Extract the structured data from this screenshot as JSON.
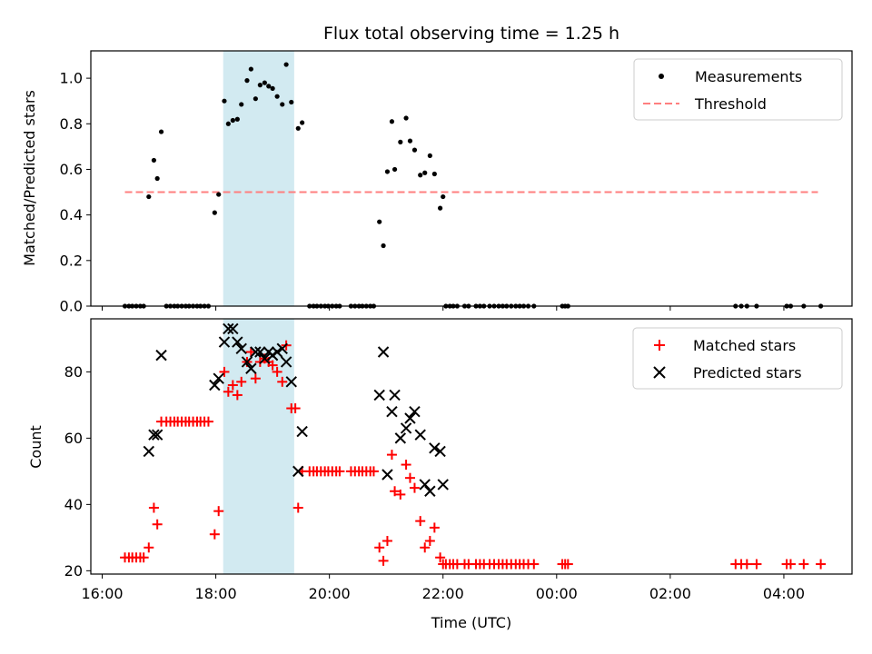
{
  "chart_data": [
    {
      "type": "scatter",
      "title": "Flux total observing time = 1.25 h",
      "xlabel": "",
      "ylabel": "Matched/Predicted stars",
      "xlim_hours": [
        15.8,
        29.2
      ],
      "ylim": [
        0,
        1.12
      ],
      "yticks": [
        0.0,
        0.2,
        0.4,
        0.6,
        0.8,
        1.0
      ],
      "ytick_labels": [
        "0.0",
        "0.2",
        "0.4",
        "0.6",
        "0.8",
        "1.0"
      ],
      "legend": {
        "placement": "top-right",
        "entries": [
          "Measurements",
          "Threshold"
        ]
      },
      "highlight_span_hours": [
        18.13,
        19.38
      ],
      "highlight_color": "#add8e6",
      "threshold": {
        "name": "Threshold",
        "y": 0.5,
        "x_range_hours": [
          16.4,
          28.6
        ],
        "color": "#ff7f7f"
      },
      "series": [
        {
          "name": "Measurements",
          "color": "#000000",
          "points": [
            [
              16.4,
              0
            ],
            [
              16.47,
              0
            ],
            [
              16.53,
              0
            ],
            [
              16.6,
              0
            ],
            [
              16.67,
              0
            ],
            [
              16.73,
              0
            ],
            [
              16.82,
              0.48
            ],
            [
              16.91,
              0.64
            ],
            [
              16.97,
              0.56
            ],
            [
              17.04,
              0.765
            ],
            [
              17.13,
              0
            ],
            [
              17.2,
              0
            ],
            [
              17.27,
              0
            ],
            [
              17.33,
              0
            ],
            [
              17.4,
              0
            ],
            [
              17.47,
              0
            ],
            [
              17.53,
              0
            ],
            [
              17.6,
              0
            ],
            [
              17.67,
              0
            ],
            [
              17.73,
              0
            ],
            [
              17.8,
              0
            ],
            [
              17.87,
              0
            ],
            [
              17.98,
              0.41
            ],
            [
              18.05,
              0.49
            ],
            [
              18.15,
              0.9
            ],
            [
              18.22,
              0.8
            ],
            [
              18.3,
              0.815
            ],
            [
              18.38,
              0.82
            ],
            [
              18.45,
              0.885
            ],
            [
              18.55,
              0.99
            ],
            [
              18.62,
              1.04
            ],
            [
              18.7,
              0.91
            ],
            [
              18.78,
              0.97
            ],
            [
              18.86,
              0.98
            ],
            [
              18.93,
              0.965
            ],
            [
              19.0,
              0.955
            ],
            [
              19.08,
              0.92
            ],
            [
              19.17,
              0.885
            ],
            [
              19.24,
              1.06
            ],
            [
              19.33,
              0.895
            ],
            [
              19.45,
              0.78
            ],
            [
              19.52,
              0.805
            ],
            [
              19.65,
              0
            ],
            [
              19.72,
              0
            ],
            [
              19.78,
              0
            ],
            [
              19.85,
              0
            ],
            [
              19.92,
              0
            ],
            [
              19.98,
              0
            ],
            [
              20.05,
              0
            ],
            [
              20.12,
              0
            ],
            [
              20.18,
              0
            ],
            [
              20.38,
              0
            ],
            [
              20.45,
              0
            ],
            [
              20.52,
              0
            ],
            [
              20.58,
              0
            ],
            [
              20.65,
              0
            ],
            [
              20.72,
              0
            ],
            [
              20.78,
              0
            ],
            [
              20.88,
              0.37
            ],
            [
              20.95,
              0.265
            ],
            [
              21.02,
              0.59
            ],
            [
              21.1,
              0.81
            ],
            [
              21.15,
              0.6
            ],
            [
              21.25,
              0.72
            ],
            [
              21.35,
              0.825
            ],
            [
              21.42,
              0.725
            ],
            [
              21.5,
              0.685
            ],
            [
              21.6,
              0.575
            ],
            [
              21.68,
              0.585
            ],
            [
              21.77,
              0.66
            ],
            [
              21.85,
              0.58
            ],
            [
              21.95,
              0.43
            ],
            [
              22.0,
              0.48
            ],
            [
              22.05,
              0
            ],
            [
              22.12,
              0
            ],
            [
              22.18,
              0
            ],
            [
              22.25,
              0
            ],
            [
              22.38,
              0
            ],
            [
              22.45,
              0
            ],
            [
              22.58,
              0
            ],
            [
              22.65,
              0
            ],
            [
              22.72,
              0
            ],
            [
              22.82,
              0
            ],
            [
              22.9,
              0
            ],
            [
              22.98,
              0
            ],
            [
              23.05,
              0
            ],
            [
              23.12,
              0
            ],
            [
              23.2,
              0
            ],
            [
              23.28,
              0
            ],
            [
              23.35,
              0
            ],
            [
              23.42,
              0
            ],
            [
              23.5,
              0
            ],
            [
              23.6,
              0
            ],
            [
              24.1,
              0
            ],
            [
              24.15,
              0
            ],
            [
              24.2,
              0
            ],
            [
              27.15,
              0
            ],
            [
              27.25,
              0
            ],
            [
              27.35,
              0
            ],
            [
              27.52,
              0
            ],
            [
              28.05,
              0
            ],
            [
              28.12,
              0
            ],
            [
              28.35,
              0
            ],
            [
              28.65,
              0
            ]
          ]
        }
      ]
    },
    {
      "type": "scatter",
      "title": "",
      "xlabel": "Time (UTC)",
      "ylabel": "Count",
      "xlim_hours": [
        15.8,
        29.2
      ],
      "ylim": [
        19,
        96
      ],
      "yticks": [
        20,
        40,
        60,
        80
      ],
      "ytick_labels": [
        "20",
        "40",
        "60",
        "80"
      ],
      "xticks_hours": [
        16,
        18,
        20,
        22,
        24,
        26,
        28
      ],
      "xtick_labels": [
        "16:00",
        "18:00",
        "20:00",
        "22:00",
        "00:00",
        "02:00",
        "04:00"
      ],
      "legend": {
        "placement": "top-right",
        "entries": [
          "Matched stars",
          "Predicted stars"
        ]
      },
      "highlight_span_hours": [
        18.13,
        19.38
      ],
      "highlight_color": "#add8e6",
      "series": [
        {
          "name": "Matched stars",
          "color": "#ff0000",
          "marker": "plus",
          "points": [
            [
              16.4,
              24
            ],
            [
              16.47,
              24
            ],
            [
              16.53,
              24
            ],
            [
              16.6,
              24
            ],
            [
              16.67,
              24
            ],
            [
              16.73,
              24
            ],
            [
              16.82,
              27
            ],
            [
              16.91,
              39
            ],
            [
              16.97,
              34
            ],
            [
              17.04,
              65
            ],
            [
              17.13,
              65
            ],
            [
              17.2,
              65
            ],
            [
              17.27,
              65
            ],
            [
              17.33,
              65
            ],
            [
              17.4,
              65
            ],
            [
              17.47,
              65
            ],
            [
              17.53,
              65
            ],
            [
              17.6,
              65
            ],
            [
              17.67,
              65
            ],
            [
              17.73,
              65
            ],
            [
              17.8,
              65
            ],
            [
              17.87,
              65
            ],
            [
              17.98,
              31
            ],
            [
              18.05,
              38
            ],
            [
              18.15,
              80
            ],
            [
              18.22,
              74
            ],
            [
              18.3,
              76
            ],
            [
              18.38,
              73
            ],
            [
              18.45,
              77
            ],
            [
              18.55,
              83
            ],
            [
              18.62,
              86
            ],
            [
              18.7,
              78
            ],
            [
              18.78,
              83
            ],
            [
              18.86,
              84
            ],
            [
              18.93,
              83
            ],
            [
              19.0,
              82
            ],
            [
              19.08,
              80
            ],
            [
              19.17,
              77
            ],
            [
              19.24,
              88
            ],
            [
              19.33,
              69
            ],
            [
              19.4,
              69
            ],
            [
              19.45,
              39
            ],
            [
              19.52,
              50
            ],
            [
              19.65,
              50
            ],
            [
              19.72,
              50
            ],
            [
              19.78,
              50
            ],
            [
              19.85,
              50
            ],
            [
              19.92,
              50
            ],
            [
              19.98,
              50
            ],
            [
              20.05,
              50
            ],
            [
              20.12,
              50
            ],
            [
              20.18,
              50
            ],
            [
              20.38,
              50
            ],
            [
              20.45,
              50
            ],
            [
              20.52,
              50
            ],
            [
              20.58,
              50
            ],
            [
              20.65,
              50
            ],
            [
              20.72,
              50
            ],
            [
              20.78,
              50
            ],
            [
              20.88,
              27
            ],
            [
              20.95,
              23
            ],
            [
              21.02,
              29
            ],
            [
              21.1,
              55
            ],
            [
              21.15,
              44
            ],
            [
              21.25,
              43
            ],
            [
              21.35,
              52
            ],
            [
              21.42,
              48
            ],
            [
              21.5,
              45
            ],
            [
              21.6,
              35
            ],
            [
              21.68,
              27
            ],
            [
              21.77,
              29
            ],
            [
              21.85,
              33
            ],
            [
              21.95,
              24
            ],
            [
              22.0,
              22
            ],
            [
              22.05,
              22
            ],
            [
              22.12,
              22
            ],
            [
              22.18,
              22
            ],
            [
              22.25,
              22
            ],
            [
              22.38,
              22
            ],
            [
              22.45,
              22
            ],
            [
              22.58,
              22
            ],
            [
              22.65,
              22
            ],
            [
              22.72,
              22
            ],
            [
              22.82,
              22
            ],
            [
              22.9,
              22
            ],
            [
              22.98,
              22
            ],
            [
              23.05,
              22
            ],
            [
              23.12,
              22
            ],
            [
              23.2,
              22
            ],
            [
              23.28,
              22
            ],
            [
              23.35,
              22
            ],
            [
              23.42,
              22
            ],
            [
              23.5,
              22
            ],
            [
              23.6,
              22
            ],
            [
              24.1,
              22
            ],
            [
              24.15,
              22
            ],
            [
              24.2,
              22
            ],
            [
              27.15,
              22
            ],
            [
              27.25,
              22
            ],
            [
              27.35,
              22
            ],
            [
              27.52,
              22
            ],
            [
              28.05,
              22
            ],
            [
              28.12,
              22
            ],
            [
              28.35,
              22
            ],
            [
              28.65,
              22
            ]
          ]
        },
        {
          "name": "Predicted stars",
          "color": "#000000",
          "marker": "x",
          "points": [
            [
              16.82,
              56
            ],
            [
              16.91,
              61
            ],
            [
              16.97,
              61
            ],
            [
              17.04,
              85
            ],
            [
              17.98,
              76
            ],
            [
              18.05,
              78
            ],
            [
              18.15,
              89
            ],
            [
              18.22,
              93
            ],
            [
              18.3,
              93
            ],
            [
              18.38,
              89
            ],
            [
              18.45,
              87
            ],
            [
              18.55,
              83
            ],
            [
              18.62,
              81
            ],
            [
              18.7,
              86
            ],
            [
              18.78,
              86
            ],
            [
              18.86,
              84
            ],
            [
              18.93,
              86
            ],
            [
              19.0,
              85
            ],
            [
              19.08,
              86
            ],
            [
              19.17,
              87
            ],
            [
              19.24,
              83
            ],
            [
              19.33,
              77
            ],
            [
              19.45,
              50
            ],
            [
              19.52,
              62
            ],
            [
              20.88,
              73
            ],
            [
              20.95,
              86
            ],
            [
              21.02,
              49
            ],
            [
              21.1,
              68
            ],
            [
              21.15,
              73
            ],
            [
              21.25,
              60
            ],
            [
              21.35,
              63
            ],
            [
              21.42,
              66
            ],
            [
              21.5,
              68
            ],
            [
              21.6,
              61
            ],
            [
              21.68,
              46
            ],
            [
              21.77,
              44
            ],
            [
              21.85,
              57
            ],
            [
              21.95,
              56
            ],
            [
              22.0,
              46
            ]
          ]
        }
      ]
    }
  ]
}
